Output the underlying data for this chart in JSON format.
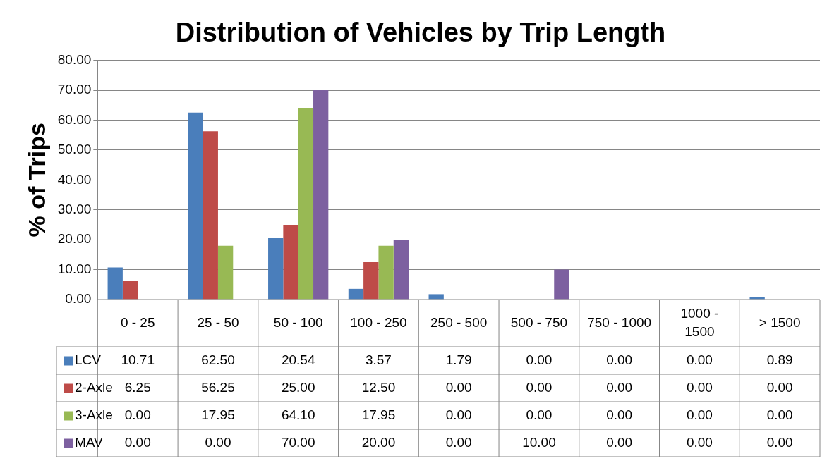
{
  "chart_data": {
    "type": "bar",
    "title": "Distribution of Vehicles by Trip Length",
    "ylabel": "% of Trips",
    "categories": [
      "0 - 25",
      "25 - 50",
      "50 - 100",
      "100 - 250",
      "250 - 500",
      "500 - 750",
      "750 - 1000",
      "1000 - 1500",
      "> 1500"
    ],
    "series": [
      {
        "name": "LCV",
        "color": "#4a7ebb",
        "values": [
          10.71,
          62.5,
          20.54,
          3.57,
          1.79,
          0,
          0,
          0,
          0.89
        ],
        "value_labels": [
          "10.71",
          "62.50",
          "20.54",
          "3.57",
          "1.79",
          "0.00",
          "0.00",
          "0.00",
          "0.89"
        ]
      },
      {
        "name": "2-Axle",
        "color": "#be4b48",
        "values": [
          6.25,
          56.25,
          25,
          12.5,
          0,
          0,
          0,
          0,
          0
        ],
        "value_labels": [
          "6.25",
          "56.25",
          "25.00",
          "12.50",
          "0.00",
          "0.00",
          "0.00",
          "0.00",
          "0.00"
        ]
      },
      {
        "name": "3-Axle",
        "color": "#98b954",
        "values": [
          0,
          17.95,
          64.1,
          17.95,
          0,
          0,
          0,
          0,
          0
        ],
        "value_labels": [
          "0.00",
          "17.95",
          "64.10",
          "17.95",
          "0.00",
          "0.00",
          "0.00",
          "0.00",
          "0.00"
        ]
      },
      {
        "name": "MAV",
        "color": "#7d60a0",
        "values": [
          0,
          0,
          70,
          20,
          0,
          10,
          0,
          0,
          0
        ],
        "value_labels": [
          "0.00",
          "0.00",
          "70.00",
          "20.00",
          "0.00",
          "10.00",
          "0.00",
          "0.00",
          "0.00"
        ]
      }
    ],
    "ylim": [
      0,
      80
    ],
    "yticks": [
      {
        "value": 0,
        "label": "0.00"
      },
      {
        "value": 10,
        "label": "10.00"
      },
      {
        "value": 20,
        "label": "20.00"
      },
      {
        "value": 30,
        "label": "30.00"
      },
      {
        "value": 40,
        "label": "40.00"
      },
      {
        "value": 50,
        "label": "50.00"
      },
      {
        "value": 60,
        "label": "60.00"
      },
      {
        "value": 70,
        "label": "70.00"
      },
      {
        "value": 80,
        "label": "80.00"
      }
    ],
    "grid": "y",
    "legend": "bottom left"
  }
}
